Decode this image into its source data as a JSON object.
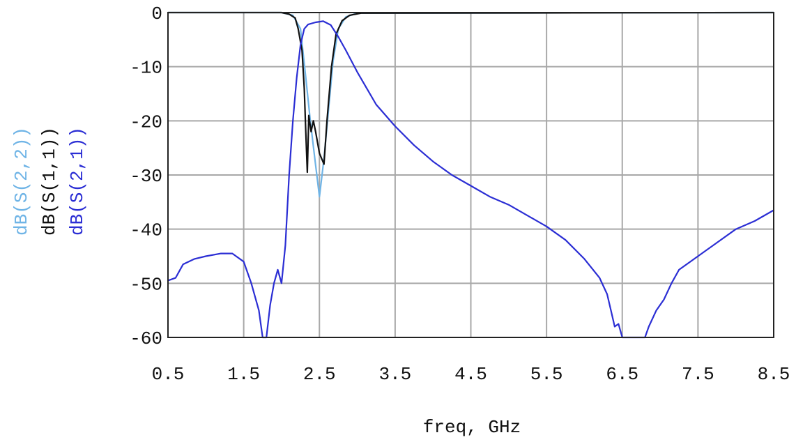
{
  "chart_data": {
    "type": "line",
    "xlabel": "freq, GHz",
    "xlim": [
      0.5,
      8.5
    ],
    "ylim": [
      -60,
      0
    ],
    "x_ticks": [
      "0.5",
      "1.5",
      "2.5",
      "3.5",
      "4.5",
      "5.5",
      "6.5",
      "7.5",
      "8.5"
    ],
    "y_ticks": [
      "0",
      "-10",
      "-20",
      "-30",
      "-40",
      "-50",
      "-60"
    ],
    "grid": true,
    "legend_position": "left-vertical",
    "series": [
      {
        "name": "dB(S(2,2))",
        "color": "#6fb4e6",
        "points": [
          [
            0.5,
            0
          ],
          [
            2.0,
            0
          ],
          [
            2.15,
            -0.5
          ],
          [
            2.25,
            -3
          ],
          [
            2.32,
            -12
          ],
          [
            2.38,
            -20
          ],
          [
            2.44,
            -27
          ],
          [
            2.5,
            -34
          ],
          [
            2.56,
            -27
          ],
          [
            2.62,
            -18
          ],
          [
            2.68,
            -9
          ],
          [
            2.75,
            -3
          ],
          [
            2.85,
            -0.8
          ],
          [
            3.0,
            -0.1
          ],
          [
            8.5,
            0
          ]
        ]
      },
      {
        "name": "dB(S(1,1))",
        "color": "#111111",
        "points": [
          [
            0.5,
            0
          ],
          [
            2.0,
            0
          ],
          [
            2.1,
            -0.3
          ],
          [
            2.18,
            -1
          ],
          [
            2.22,
            -3
          ],
          [
            2.27,
            -7
          ],
          [
            2.3,
            -14
          ],
          [
            2.32,
            -22
          ],
          [
            2.34,
            -29.5
          ],
          [
            2.36,
            -19
          ],
          [
            2.39,
            -22
          ],
          [
            2.42,
            -20
          ],
          [
            2.45,
            -22
          ],
          [
            2.5,
            -26
          ],
          [
            2.56,
            -28
          ],
          [
            2.6,
            -20
          ],
          [
            2.66,
            -10
          ],
          [
            2.72,
            -4
          ],
          [
            2.8,
            -1.5
          ],
          [
            2.9,
            -0.5
          ],
          [
            3.05,
            -0.1
          ],
          [
            8.5,
            0
          ]
        ]
      },
      {
        "name": "dB(S(2,1))",
        "color": "#2b2ed4",
        "points": [
          [
            0.5,
            -49.5
          ],
          [
            0.6,
            -49
          ],
          [
            0.7,
            -46.5
          ],
          [
            0.85,
            -45.5
          ],
          [
            1.0,
            -45
          ],
          [
            1.2,
            -44.5
          ],
          [
            1.35,
            -44.5
          ],
          [
            1.5,
            -46
          ],
          [
            1.6,
            -50
          ],
          [
            1.7,
            -55
          ],
          [
            1.75,
            -60
          ],
          [
            1.8,
            -60
          ],
          [
            1.85,
            -54
          ],
          [
            1.9,
            -50
          ],
          [
            1.95,
            -47.5
          ],
          [
            2.0,
            -50
          ],
          [
            2.05,
            -43
          ],
          [
            2.1,
            -30
          ],
          [
            2.15,
            -20
          ],
          [
            2.2,
            -12
          ],
          [
            2.25,
            -6
          ],
          [
            2.3,
            -3
          ],
          [
            2.35,
            -2.2
          ],
          [
            2.45,
            -1.8
          ],
          [
            2.55,
            -1.6
          ],
          [
            2.65,
            -2.3
          ],
          [
            2.75,
            -4.5
          ],
          [
            2.85,
            -7
          ],
          [
            3.0,
            -11
          ],
          [
            3.25,
            -17
          ],
          [
            3.5,
            -21
          ],
          [
            3.75,
            -24.5
          ],
          [
            4.0,
            -27.5
          ],
          [
            4.25,
            -30
          ],
          [
            4.5,
            -32
          ],
          [
            4.75,
            -34
          ],
          [
            5.0,
            -35.5
          ],
          [
            5.25,
            -37.5
          ],
          [
            5.5,
            -39.5
          ],
          [
            5.75,
            -42
          ],
          [
            6.0,
            -45.5
          ],
          [
            6.2,
            -49
          ],
          [
            6.3,
            -52
          ],
          [
            6.35,
            -55
          ],
          [
            6.4,
            -58
          ],
          [
            6.45,
            -57.5
          ],
          [
            6.5,
            -60
          ],
          [
            6.8,
            -60
          ],
          [
            6.85,
            -58
          ],
          [
            6.95,
            -55
          ],
          [
            7.05,
            -53
          ],
          [
            7.15,
            -50
          ],
          [
            7.25,
            -47.5
          ],
          [
            7.5,
            -45
          ],
          [
            7.75,
            -42.5
          ],
          [
            8.0,
            -40
          ],
          [
            8.25,
            -38.5
          ],
          [
            8.5,
            -36.5
          ]
        ]
      }
    ]
  }
}
